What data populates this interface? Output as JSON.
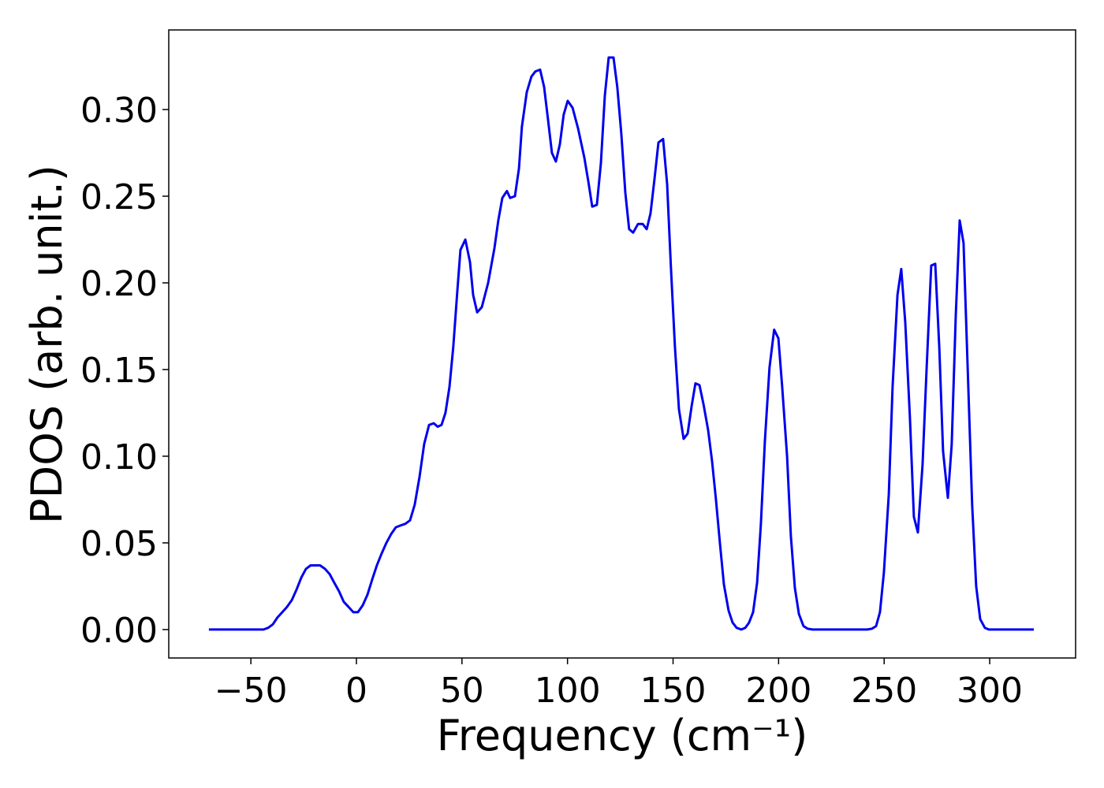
{
  "chart_data": {
    "type": "line",
    "xlabel": "Frequency (cm⁻¹)",
    "ylabel": "PDOS (arb. unit.)",
    "color": "#0000ee",
    "x": [
      -69.9,
      -44,
      -41.8,
      -39.6,
      -37.4,
      -35.1,
      -32.9,
      -30.6,
      -28.4,
      -26.1,
      -23.9,
      -21.7,
      -19.4,
      -17.2,
      -14.9,
      -12.7,
      -10.5,
      -8.2,
      -6,
      -3.7,
      -1.5,
      0.7,
      3,
      5.2,
      7.5,
      9.7,
      12,
      14.2,
      16.4,
      18.7,
      20.9,
      23.2,
      25.4,
      27.6,
      29.9,
      32.1,
      34.4,
      36.6,
      38.5,
      40.3,
      42.2,
      44.1,
      45.9,
      47.8,
      49.3,
      51.6,
      53.8,
      55.3,
      57.2,
      59.4,
      62.4,
      65.4,
      67.2,
      69.1,
      71.3,
      72.8,
      75.1,
      77,
      78.4,
      80.7,
      82.9,
      84.8,
      87,
      88.9,
      90.8,
      92.6,
      94.5,
      96.4,
      98.2,
      100.1,
      102.4,
      105,
      108,
      109.8,
      111.7,
      113.9,
      115.8,
      117.7,
      119.5,
      121.8,
      123.6,
      125.5,
      127.4,
      129.2,
      131.1,
      133.4,
      135.6,
      137.5,
      139.3,
      141.2,
      143.1,
      145.3,
      147.2,
      149,
      150.9,
      152.8,
      155,
      156.9,
      158.8,
      160.6,
      162.5,
      164.4,
      166.6,
      168.5,
      170.3,
      172.2,
      174.1,
      176.3,
      178.2,
      180.1,
      182.3,
      184.2,
      186,
      187.9,
      189.8,
      191.6,
      193.5,
      195.7,
      197.9,
      199.9,
      201.7,
      204,
      205.8,
      207.7,
      209.6,
      211.8,
      213.7,
      216,
      242,
      244.3,
      246.2,
      248,
      249.9,
      252.2,
      254,
      256.3,
      258.1,
      260,
      262.2,
      264.1,
      266,
      268.2,
      270.1,
      272.3,
      274.2,
      276.1,
      277.9,
      280.2,
      282,
      283.9,
      285.8,
      287.6,
      289.5,
      291.7,
      293.6,
      295.5,
      297.7,
      299.6,
      320.9
    ],
    "values": [
      0,
      0,
      0.001,
      0.003,
      0.007,
      0.01,
      0.013,
      0.017,
      0.023,
      0.03,
      0.035,
      0.037,
      0.037,
      0.037,
      0.035,
      0.032,
      0.027,
      0.022,
      0.016,
      0.013,
      0.01,
      0.01,
      0.014,
      0.02,
      0.029,
      0.037,
      0.044,
      0.05,
      0.055,
      0.059,
      0.06,
      0.061,
      0.063,
      0.072,
      0.088,
      0.107,
      0.118,
      0.119,
      0.117,
      0.118,
      0.125,
      0.14,
      0.163,
      0.195,
      0.219,
      0.225,
      0.212,
      0.193,
      0.183,
      0.186,
      0.2,
      0.22,
      0.236,
      0.249,
      0.253,
      0.249,
      0.25,
      0.266,
      0.29,
      0.31,
      0.319,
      0.322,
      0.323,
      0.313,
      0.294,
      0.275,
      0.27,
      0.28,
      0.297,
      0.305,
      0.301,
      0.289,
      0.272,
      0.259,
      0.244,
      0.245,
      0.269,
      0.308,
      0.33,
      0.33,
      0.313,
      0.286,
      0.252,
      0.231,
      0.229,
      0.234,
      0.234,
      0.231,
      0.24,
      0.26,
      0.281,
      0.283,
      0.257,
      0.209,
      0.163,
      0.127,
      0.11,
      0.113,
      0.129,
      0.142,
      0.141,
      0.13,
      0.115,
      0.097,
      0.075,
      0.05,
      0.026,
      0.011,
      0.004,
      0.001,
      0,
      0.001,
      0.004,
      0.01,
      0.027,
      0.061,
      0.109,
      0.151,
      0.173,
      0.168,
      0.14,
      0.1,
      0.054,
      0.024,
      0.009,
      0.002,
      0.0005,
      0,
      0,
      0.0005,
      0.002,
      0.01,
      0.033,
      0.078,
      0.14,
      0.193,
      0.208,
      0.177,
      0.122,
      0.065,
      0.056,
      0.095,
      0.15,
      0.21,
      0.211,
      0.163,
      0.103,
      0.076,
      0.107,
      0.181,
      0.236,
      0.223,
      0.154,
      0.072,
      0.025,
      0.006,
      0.001,
      0,
      0
    ],
    "xlim": [
      -88.9,
      340.7
    ],
    "ylim": [
      -0.0164,
      0.3459
    ],
    "xticks": [
      {
        "value": -50,
        "label": "−50"
      },
      0,
      50,
      100,
      150,
      200,
      250,
      300
    ],
    "yticks": [
      {
        "value": 0,
        "label": "0.00"
      },
      {
        "value": 0.05,
        "label": "0.05"
      },
      {
        "value": 0.1,
        "label": "0.10"
      },
      {
        "value": 0.15,
        "label": "0.15"
      },
      {
        "value": 0.2,
        "label": "0.20"
      },
      {
        "value": 0.25,
        "label": "0.25"
      },
      {
        "value": 0.3,
        "label": "0.30"
      }
    ]
  }
}
